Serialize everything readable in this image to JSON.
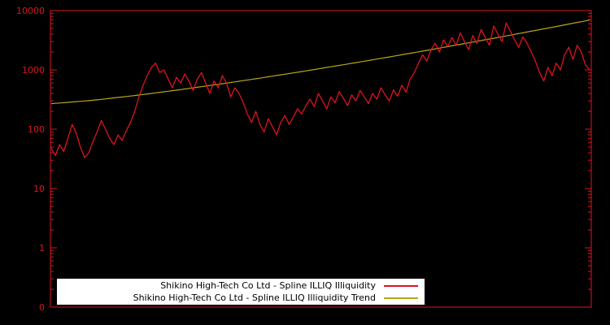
{
  "window": {
    "background": "#000000"
  },
  "chart_data": {
    "type": "line",
    "title": "",
    "xlabel": "",
    "ylabel": "",
    "grid": false,
    "axis_color": "#dc1420",
    "plot_background": "#000000",
    "y_axis": {
      "scale": "log",
      "min": 0.1,
      "max": 10000
    },
    "yticks": [
      "10000",
      "1000",
      "100",
      "10",
      "1",
      "0"
    ],
    "legend": {
      "position": "bottom-center",
      "background": "#ffffff",
      "text_color": "#000000"
    },
    "series": [
      {
        "name": "Shikino High-Tech Co Ltd - Spline ILLIQ Illiquidity",
        "color": "#dc1420",
        "values": [
          48,
          36,
          55,
          42,
          70,
          120,
          85,
          50,
          33,
          40,
          62,
          90,
          140,
          100,
          70,
          55,
          80,
          65,
          95,
          130,
          200,
          350,
          550,
          800,
          1100,
          1300,
          900,
          1000,
          700,
          500,
          750,
          600,
          850,
          650,
          450,
          700,
          900,
          600,
          400,
          650,
          500,
          800,
          600,
          350,
          500,
          400,
          280,
          180,
          130,
          200,
          120,
          90,
          150,
          110,
          80,
          130,
          170,
          120,
          160,
          220,
          180,
          250,
          320,
          240,
          400,
          300,
          220,
          350,
          280,
          430,
          330,
          250,
          380,
          300,
          450,
          350,
          270,
          400,
          320,
          500,
          380,
          300,
          460,
          360,
          550,
          420,
          700,
          900,
          1300,
          1800,
          1400,
          2200,
          2800,
          2000,
          3200,
          2500,
          3500,
          2600,
          4200,
          3000,
          2200,
          3800,
          2800,
          4800,
          3500,
          2600,
          5500,
          4000,
          3000,
          6200,
          4500,
          3200,
          2400,
          3600,
          2800,
          2000,
          1400,
          900,
          650,
          1100,
          800,
          1300,
          1000,
          1800,
          2400,
          1500,
          2600,
          2000,
          1200,
          1000
        ]
      },
      {
        "name": "Shikino High-Tech Co Ltd - Spline ILLIQ Illiquidity Trend",
        "color": "#b8a418",
        "interpolation": "log-linear",
        "anchors": [
          [
            0,
            269
          ],
          [
            10,
            307
          ],
          [
            20,
            369
          ],
          [
            30,
            455
          ],
          [
            40,
            570
          ],
          [
            50,
            726
          ],
          [
            60,
            936
          ],
          [
            70,
            1221
          ],
          [
            80,
            1606
          ],
          [
            90,
            2133
          ],
          [
            100,
            2857
          ],
          [
            110,
            3848
          ],
          [
            120,
            5224
          ],
          [
            129,
            6918
          ]
        ]
      }
    ]
  }
}
